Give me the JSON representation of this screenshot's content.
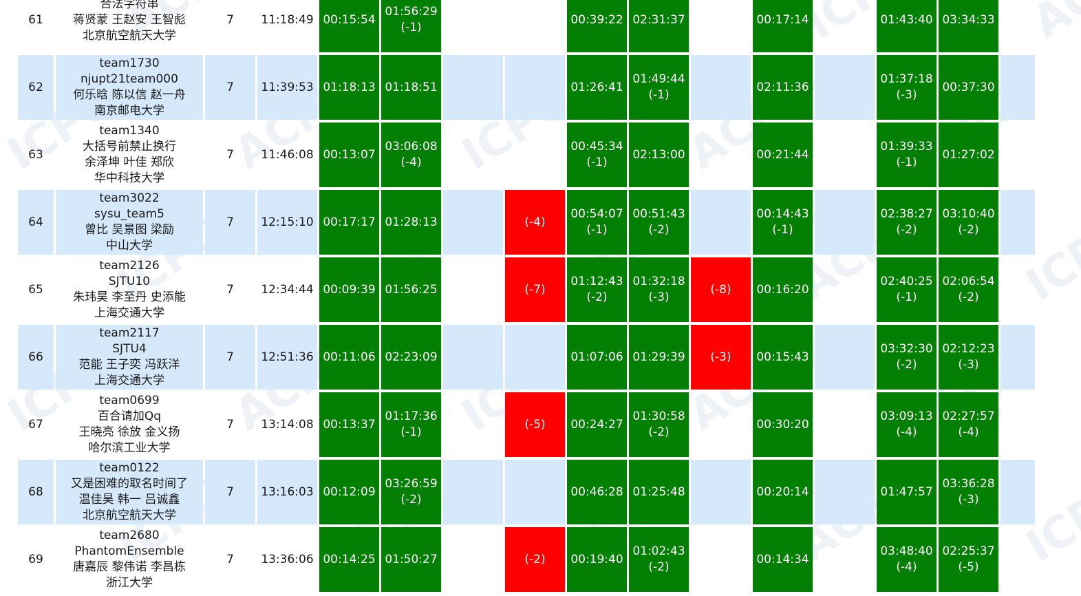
{
  "watermark_texts": [
    "ICPC",
    "ACM"
  ],
  "colors": {
    "accepted": "#038003",
    "rejected": "#ff0000",
    "row_stripe": "#d6e9fb"
  },
  "rows": [
    {
      "rank": "61",
      "team_id": "",
      "team_name": "合法字符串",
      "members": "蒋贤蒙 王赵安 王智彪",
      "school": "北京航空航天大学",
      "solved": "7",
      "penalty": "11:18:49",
      "problems": [
        {
          "status": "ac",
          "time": "00:15:54",
          "tries": ""
        },
        {
          "status": "ac",
          "time": "01:56:29",
          "tries": "(-1)"
        },
        {
          "status": "none",
          "time": "",
          "tries": ""
        },
        {
          "status": "none",
          "time": "",
          "tries": ""
        },
        {
          "status": "ac",
          "time": "00:39:22",
          "tries": ""
        },
        {
          "status": "ac",
          "time": "02:31:37",
          "tries": ""
        },
        {
          "status": "none",
          "time": "",
          "tries": ""
        },
        {
          "status": "ac",
          "time": "00:17:14",
          "tries": ""
        },
        {
          "status": "none",
          "time": "",
          "tries": ""
        },
        {
          "status": "ac",
          "time": "01:43:40",
          "tries": ""
        },
        {
          "status": "ac",
          "time": "03:34:33",
          "tries": ""
        }
      ]
    },
    {
      "rank": "62",
      "team_id": "team1730",
      "team_name": "njupt21team000",
      "members": "何乐晗 陈以信 赵一舟",
      "school": "南京邮电大学",
      "solved": "7",
      "penalty": "11:39:53",
      "problems": [
        {
          "status": "ac",
          "time": "01:18:13",
          "tries": ""
        },
        {
          "status": "ac",
          "time": "01:18:51",
          "tries": ""
        },
        {
          "status": "none",
          "time": "",
          "tries": ""
        },
        {
          "status": "none",
          "time": "",
          "tries": ""
        },
        {
          "status": "ac",
          "time": "01:26:41",
          "tries": ""
        },
        {
          "status": "ac",
          "time": "01:49:44",
          "tries": "(-1)"
        },
        {
          "status": "none",
          "time": "",
          "tries": ""
        },
        {
          "status": "ac",
          "time": "02:11:36",
          "tries": ""
        },
        {
          "status": "none",
          "time": "",
          "tries": ""
        },
        {
          "status": "ac",
          "time": "01:37:18",
          "tries": "(-3)"
        },
        {
          "status": "ac",
          "time": "00:37:30",
          "tries": ""
        }
      ]
    },
    {
      "rank": "63",
      "team_id": "team1340",
      "team_name": "大括号前禁止换行",
      "members": "余泽坤 叶佳 郑欣",
      "school": "华中科技大学",
      "solved": "7",
      "penalty": "11:46:08",
      "problems": [
        {
          "status": "ac",
          "time": "00:13:07",
          "tries": ""
        },
        {
          "status": "ac",
          "time": "03:06:08",
          "tries": "(-4)"
        },
        {
          "status": "none",
          "time": "",
          "tries": ""
        },
        {
          "status": "none",
          "time": "",
          "tries": ""
        },
        {
          "status": "ac",
          "time": "00:45:34",
          "tries": "(-1)"
        },
        {
          "status": "ac",
          "time": "02:13:00",
          "tries": ""
        },
        {
          "status": "none",
          "time": "",
          "tries": ""
        },
        {
          "status": "ac",
          "time": "00:21:44",
          "tries": ""
        },
        {
          "status": "none",
          "time": "",
          "tries": ""
        },
        {
          "status": "ac",
          "time": "01:39:33",
          "tries": "(-1)"
        },
        {
          "status": "ac",
          "time": "01:27:02",
          "tries": ""
        }
      ]
    },
    {
      "rank": "64",
      "team_id": "team3022",
      "team_name": "sysu_team5",
      "members": "曾比 吴景图 梁励",
      "school": "中山大学",
      "solved": "7",
      "penalty": "12:15:10",
      "problems": [
        {
          "status": "ac",
          "time": "00:17:17",
          "tries": ""
        },
        {
          "status": "ac",
          "time": "01:28:13",
          "tries": ""
        },
        {
          "status": "none",
          "time": "",
          "tries": ""
        },
        {
          "status": "wa",
          "time": "",
          "tries": "(-4)"
        },
        {
          "status": "ac",
          "time": "00:54:07",
          "tries": "(-1)"
        },
        {
          "status": "ac",
          "time": "00:51:43",
          "tries": "(-2)"
        },
        {
          "status": "none",
          "time": "",
          "tries": ""
        },
        {
          "status": "ac",
          "time": "00:14:43",
          "tries": "(-1)"
        },
        {
          "status": "none",
          "time": "",
          "tries": ""
        },
        {
          "status": "ac",
          "time": "02:38:27",
          "tries": "(-2)"
        },
        {
          "status": "ac",
          "time": "03:10:40",
          "tries": "(-2)"
        }
      ]
    },
    {
      "rank": "65",
      "team_id": "team2126",
      "team_name": "SJTU10",
      "members": "朱玮昊 李至丹 史添能",
      "school": "上海交通大学",
      "solved": "7",
      "penalty": "12:34:44",
      "problems": [
        {
          "status": "ac",
          "time": "00:09:39",
          "tries": ""
        },
        {
          "status": "ac",
          "time": "01:56:25",
          "tries": ""
        },
        {
          "status": "none",
          "time": "",
          "tries": ""
        },
        {
          "status": "wa",
          "time": "",
          "tries": "(-7)"
        },
        {
          "status": "ac",
          "time": "01:12:43",
          "tries": "(-2)"
        },
        {
          "status": "ac",
          "time": "01:32:18",
          "tries": "(-3)"
        },
        {
          "status": "wa",
          "time": "",
          "tries": "(-8)"
        },
        {
          "status": "ac",
          "time": "00:16:20",
          "tries": ""
        },
        {
          "status": "none",
          "time": "",
          "tries": ""
        },
        {
          "status": "ac",
          "time": "02:40:25",
          "tries": "(-1)"
        },
        {
          "status": "ac",
          "time": "02:06:54",
          "tries": "(-2)"
        }
      ]
    },
    {
      "rank": "66",
      "team_id": "team2117",
      "team_name": "SJTU4",
      "members": "范能 王子奕 冯跃洋",
      "school": "上海交通大学",
      "solved": "7",
      "penalty": "12:51:36",
      "problems": [
        {
          "status": "ac",
          "time": "00:11:06",
          "tries": ""
        },
        {
          "status": "ac",
          "time": "02:23:09",
          "tries": ""
        },
        {
          "status": "none",
          "time": "",
          "tries": ""
        },
        {
          "status": "none",
          "time": "",
          "tries": ""
        },
        {
          "status": "ac",
          "time": "01:07:06",
          "tries": ""
        },
        {
          "status": "ac",
          "time": "01:29:39",
          "tries": ""
        },
        {
          "status": "wa",
          "time": "",
          "tries": "(-3)"
        },
        {
          "status": "ac",
          "time": "00:15:43",
          "tries": ""
        },
        {
          "status": "none",
          "time": "",
          "tries": ""
        },
        {
          "status": "ac",
          "time": "03:32:30",
          "tries": "(-2)"
        },
        {
          "status": "ac",
          "time": "02:12:23",
          "tries": "(-3)"
        }
      ]
    },
    {
      "rank": "67",
      "team_id": "team0699",
      "team_name": "百合请加Qq",
      "members": "王晓亮 徐放 金义扬",
      "school": "哈尔滨工业大学",
      "solved": "7",
      "penalty": "13:14:08",
      "problems": [
        {
          "status": "ac",
          "time": "00:13:37",
          "tries": ""
        },
        {
          "status": "ac",
          "time": "01:17:36",
          "tries": "(-1)"
        },
        {
          "status": "none",
          "time": "",
          "tries": ""
        },
        {
          "status": "wa",
          "time": "",
          "tries": "(-5)"
        },
        {
          "status": "ac",
          "time": "00:24:27",
          "tries": ""
        },
        {
          "status": "ac",
          "time": "01:30:58",
          "tries": "(-2)"
        },
        {
          "status": "none",
          "time": "",
          "tries": ""
        },
        {
          "status": "ac",
          "time": "00:30:20",
          "tries": ""
        },
        {
          "status": "none",
          "time": "",
          "tries": ""
        },
        {
          "status": "ac",
          "time": "03:09:13",
          "tries": "(-4)"
        },
        {
          "status": "ac",
          "time": "02:27:57",
          "tries": "(-4)"
        }
      ]
    },
    {
      "rank": "68",
      "team_id": "team0122",
      "team_name": "又是困难的取名时间了",
      "members": "温佳昊 韩一 吕诚鑫",
      "school": "北京航空航天大学",
      "solved": "7",
      "penalty": "13:16:03",
      "problems": [
        {
          "status": "ac",
          "time": "00:12:09",
          "tries": ""
        },
        {
          "status": "ac",
          "time": "03:26:59",
          "tries": "(-2)"
        },
        {
          "status": "none",
          "time": "",
          "tries": ""
        },
        {
          "status": "none",
          "time": "",
          "tries": ""
        },
        {
          "status": "ac",
          "time": "00:46:28",
          "tries": ""
        },
        {
          "status": "ac",
          "time": "01:25:48",
          "tries": ""
        },
        {
          "status": "none",
          "time": "",
          "tries": ""
        },
        {
          "status": "ac",
          "time": "00:20:14",
          "tries": ""
        },
        {
          "status": "none",
          "time": "",
          "tries": ""
        },
        {
          "status": "ac",
          "time": "01:47:57",
          "tries": ""
        },
        {
          "status": "ac",
          "time": "03:36:28",
          "tries": "(-3)"
        }
      ]
    },
    {
      "rank": "69",
      "team_id": "team2680",
      "team_name": "PhantomEnsemble",
      "members": "唐嘉辰 黎伟诺 李昌栋",
      "school": "浙江大学",
      "solved": "7",
      "penalty": "13:36:06",
      "problems": [
        {
          "status": "ac",
          "time": "00:14:25",
          "tries": ""
        },
        {
          "status": "ac",
          "time": "01:50:27",
          "tries": ""
        },
        {
          "status": "none",
          "time": "",
          "tries": ""
        },
        {
          "status": "wa",
          "time": "",
          "tries": "(-2)"
        },
        {
          "status": "ac",
          "time": "00:19:40",
          "tries": ""
        },
        {
          "status": "ac",
          "time": "01:02:43",
          "tries": "(-2)"
        },
        {
          "status": "none",
          "time": "",
          "tries": ""
        },
        {
          "status": "ac",
          "time": "00:14:34",
          "tries": ""
        },
        {
          "status": "none",
          "time": "",
          "tries": ""
        },
        {
          "status": "ac",
          "time": "03:48:40",
          "tries": "(-4)"
        },
        {
          "status": "ac",
          "time": "02:25:37",
          "tries": "(-5)"
        }
      ]
    }
  ]
}
